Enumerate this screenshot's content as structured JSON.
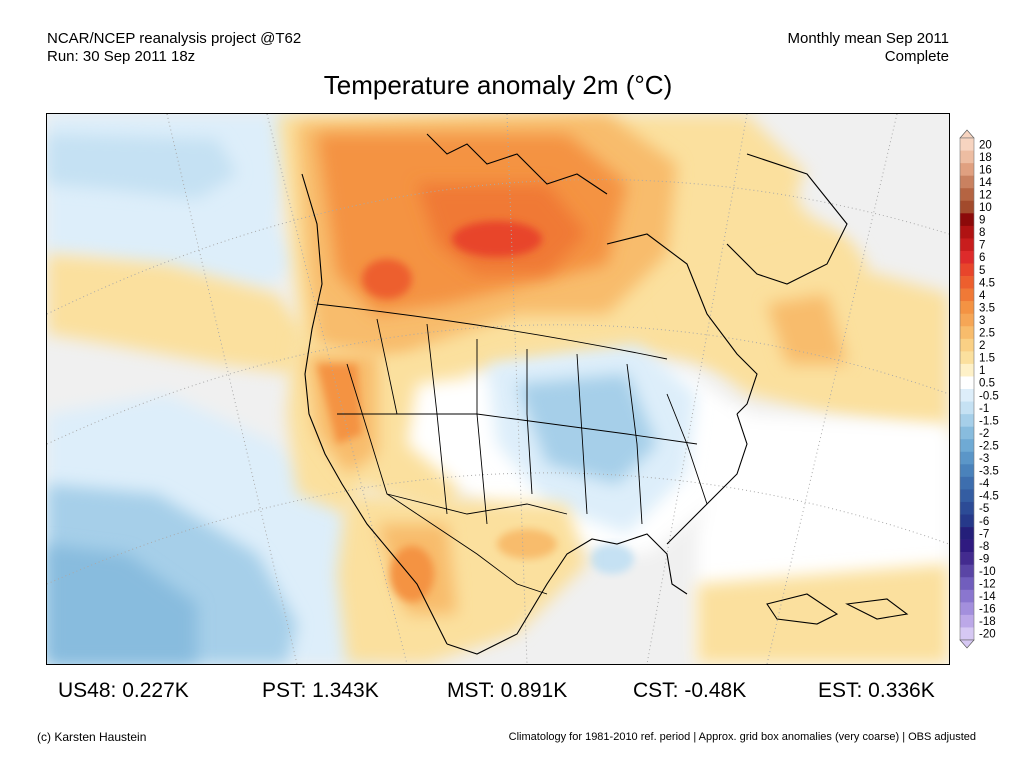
{
  "header": {
    "project": "NCAR/NCEP reanalysis project @T62",
    "run": "Run: 30 Sep 2011 18z",
    "period": "Monthly mean Sep 2011",
    "status": "Complete"
  },
  "title": "Temperature anomaly 2m (°C)",
  "colorbar": {
    "labels": [
      "20",
      "18",
      "16",
      "14",
      "12",
      "10",
      "9",
      "8",
      "7",
      "6",
      "5",
      "4.5",
      "4",
      "3.5",
      "3",
      "2.5",
      "2",
      "1.5",
      "1",
      "0.5",
      "-0.5",
      "-1",
      "-1.5",
      "-2",
      "-2.5",
      "-3",
      "-3.5",
      "-4",
      "-4.5",
      "-5",
      "-6",
      "-7",
      "-8",
      "-9",
      "-10",
      "-12",
      "-14",
      "-16",
      "-18",
      "-20"
    ],
    "colors": [
      "#f7d4c0",
      "#edbda2",
      "#e0a080",
      "#c98160",
      "#b56442",
      "#a24a2c",
      "#8c0a0a",
      "#b01313",
      "#c81d1d",
      "#de2b2b",
      "#e8452b",
      "#ed5f2e",
      "#f07936",
      "#f49343",
      "#f6a656",
      "#f8bc6c",
      "#fad085",
      "#fbe09e",
      "#fef1c8",
      "#ffffff",
      "#ddeefa",
      "#c5e1f3",
      "#a6cfe9",
      "#88bcde",
      "#6faad4",
      "#5b96c8",
      "#4a82bb",
      "#3d6eae",
      "#345da2",
      "#2c4b96",
      "#26398a",
      "#241f7a",
      "#2f1a80",
      "#432b8f",
      "#5a45a5",
      "#715ebd",
      "#8a76cf",
      "#a38fdd",
      "#bca8e8",
      "#d6c8f3"
    ]
  },
  "map": {
    "legend_colors": {
      "background": "#f0f0f0",
      "neutral": "#ffffff",
      "warm_light": "#fbe09e",
      "warm": "#f8bc6c",
      "hot": "#f49343",
      "hotter": "#e8452b",
      "cool_light": "#ddeefa",
      "cool": "#a6cfe9",
      "cooler": "#88bcde"
    }
  },
  "stats": [
    {
      "label": "US48: 0.227K"
    },
    {
      "label": "PST: 1.343K"
    },
    {
      "label": "MST: 0.891K"
    },
    {
      "label": "CST: -0.48K"
    },
    {
      "label": "EST: 0.336K"
    }
  ],
  "footer": {
    "credit": "(c) Karsten Haustein",
    "note": "Climatology for 1981-2010 ref. period | Approx. grid box anomalies (very coarse) | OBS adjusted"
  }
}
